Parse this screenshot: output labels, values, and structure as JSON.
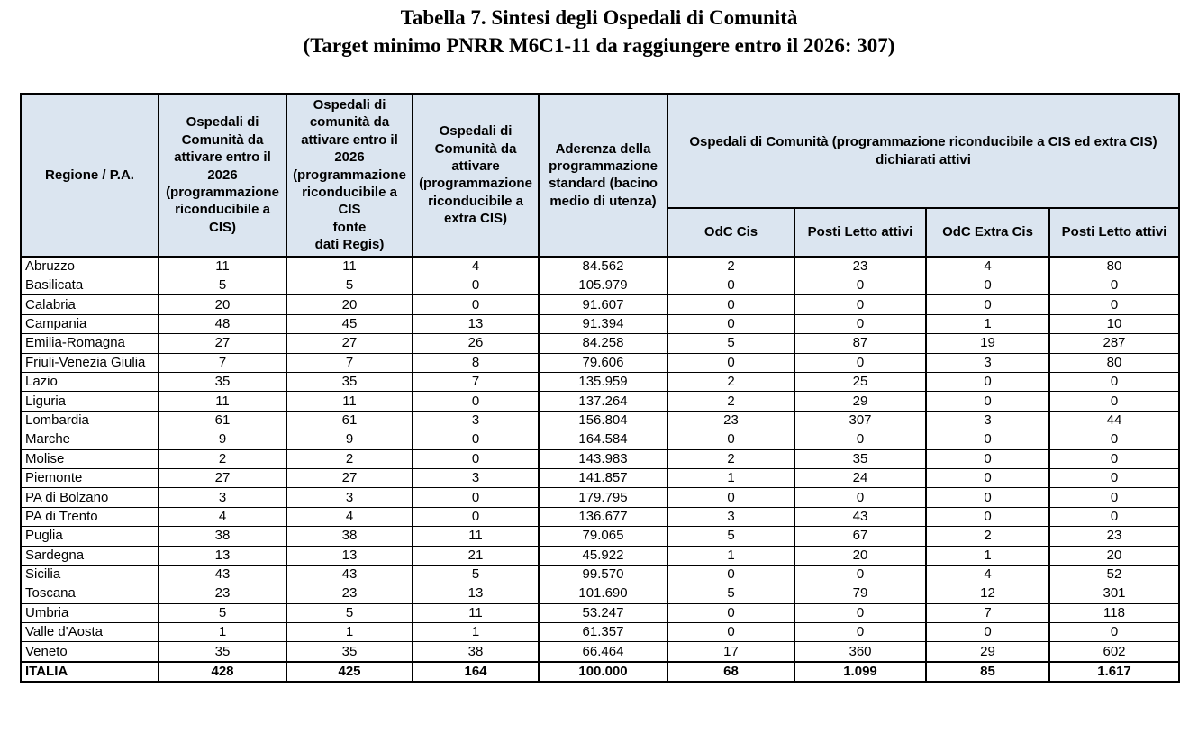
{
  "title": {
    "line1": "Tabella 7. Sintesi degli Ospedali di Comunità",
    "line2": "(Target minimo PNRR M6C1-11 da raggiungere entro il 2026: 307)"
  },
  "colors": {
    "header_fill": "#dbe5f0",
    "border": "#000000",
    "text": "#000000",
    "background": "#ffffff"
  },
  "table": {
    "header": {
      "regione": "Regione / P.A.",
      "odc_cis_2026": "Ospedali di\nComunità da\nattivare entro il\n2026\n(programmazione\nriconducibile a\nCIS)",
      "odc_cis_regis": "Ospedali di\ncomunità da\nattivare entro il\n2026\n(programmazione\nriconducibile a CIS\nfonte\ndati Regis)",
      "odc_extra_cis": "Ospedali di\nComunità da\nattivare\n(programmazione\nriconducibile a\nextra CIS)",
      "aderenza": "Aderenza della\nprogrammazione\nstandard (bacino\nmedio di utenza)",
      "group_dichiarati_attivi": "Ospedali di Comunità (programmazione riconducibile a CIS ed extra CIS)\ndichiarati attivi",
      "sub_columns": [
        "OdC Cis",
        "Posti Letto attivi",
        "OdC Extra Cis",
        "Posti Letto attivi"
      ]
    },
    "rows": [
      [
        "Abruzzo",
        "11",
        "11",
        "4",
        "84.562",
        "2",
        "23",
        "4",
        "80"
      ],
      [
        "Basilicata",
        "5",
        "5",
        "0",
        "105.979",
        "0",
        "0",
        "0",
        "0"
      ],
      [
        "Calabria",
        "20",
        "20",
        "0",
        "91.607",
        "0",
        "0",
        "0",
        "0"
      ],
      [
        "Campania",
        "48",
        "45",
        "13",
        "91.394",
        "0",
        "0",
        "1",
        "10"
      ],
      [
        "Emilia-Romagna",
        "27",
        "27",
        "26",
        "84.258",
        "5",
        "87",
        "19",
        "287"
      ],
      [
        "Friuli-Venezia Giulia",
        "7",
        "7",
        "8",
        "79.606",
        "0",
        "0",
        "3",
        "80"
      ],
      [
        "Lazio",
        "35",
        "35",
        "7",
        "135.959",
        "2",
        "25",
        "0",
        "0"
      ],
      [
        "Liguria",
        "11",
        "11",
        "0",
        "137.264",
        "2",
        "29",
        "0",
        "0"
      ],
      [
        "Lombardia",
        "61",
        "61",
        "3",
        "156.804",
        "23",
        "307",
        "3",
        "44"
      ],
      [
        "Marche",
        "9",
        "9",
        "0",
        "164.584",
        "0",
        "0",
        "0",
        "0"
      ],
      [
        "Molise",
        "2",
        "2",
        "0",
        "143.983",
        "2",
        "35",
        "0",
        "0"
      ],
      [
        "Piemonte",
        "27",
        "27",
        "3",
        "141.857",
        "1",
        "24",
        "0",
        "0"
      ],
      [
        "PA di Bolzano",
        "3",
        "3",
        "0",
        "179.795",
        "0",
        "0",
        "0",
        "0"
      ],
      [
        "PA di Trento",
        "4",
        "4",
        "0",
        "136.677",
        "3",
        "43",
        "0",
        "0"
      ],
      [
        "Puglia",
        "38",
        "38",
        "11",
        "79.065",
        "5",
        "67",
        "2",
        "23"
      ],
      [
        "Sardegna",
        "13",
        "13",
        "21",
        "45.922",
        "1",
        "20",
        "1",
        "20"
      ],
      [
        "Sicilia",
        "43",
        "43",
        "5",
        "99.570",
        "0",
        "0",
        "4",
        "52"
      ],
      [
        "Toscana",
        "23",
        "23",
        "13",
        "101.690",
        "5",
        "79",
        "12",
        "301"
      ],
      [
        "Umbria",
        "5",
        "5",
        "11",
        "53.247",
        "0",
        "0",
        "7",
        "118"
      ],
      [
        "Valle d'Aosta",
        "1",
        "1",
        "1",
        "61.357",
        "0",
        "0",
        "0",
        "0"
      ],
      [
        "Veneto",
        "35",
        "35",
        "38",
        "66.464",
        "17",
        "360",
        "29",
        "602"
      ]
    ],
    "total_row": [
      "ITALIA",
      "428",
      "425",
      "164",
      "100.000",
      "68",
      "1.099",
      "85",
      "1.617"
    ]
  }
}
